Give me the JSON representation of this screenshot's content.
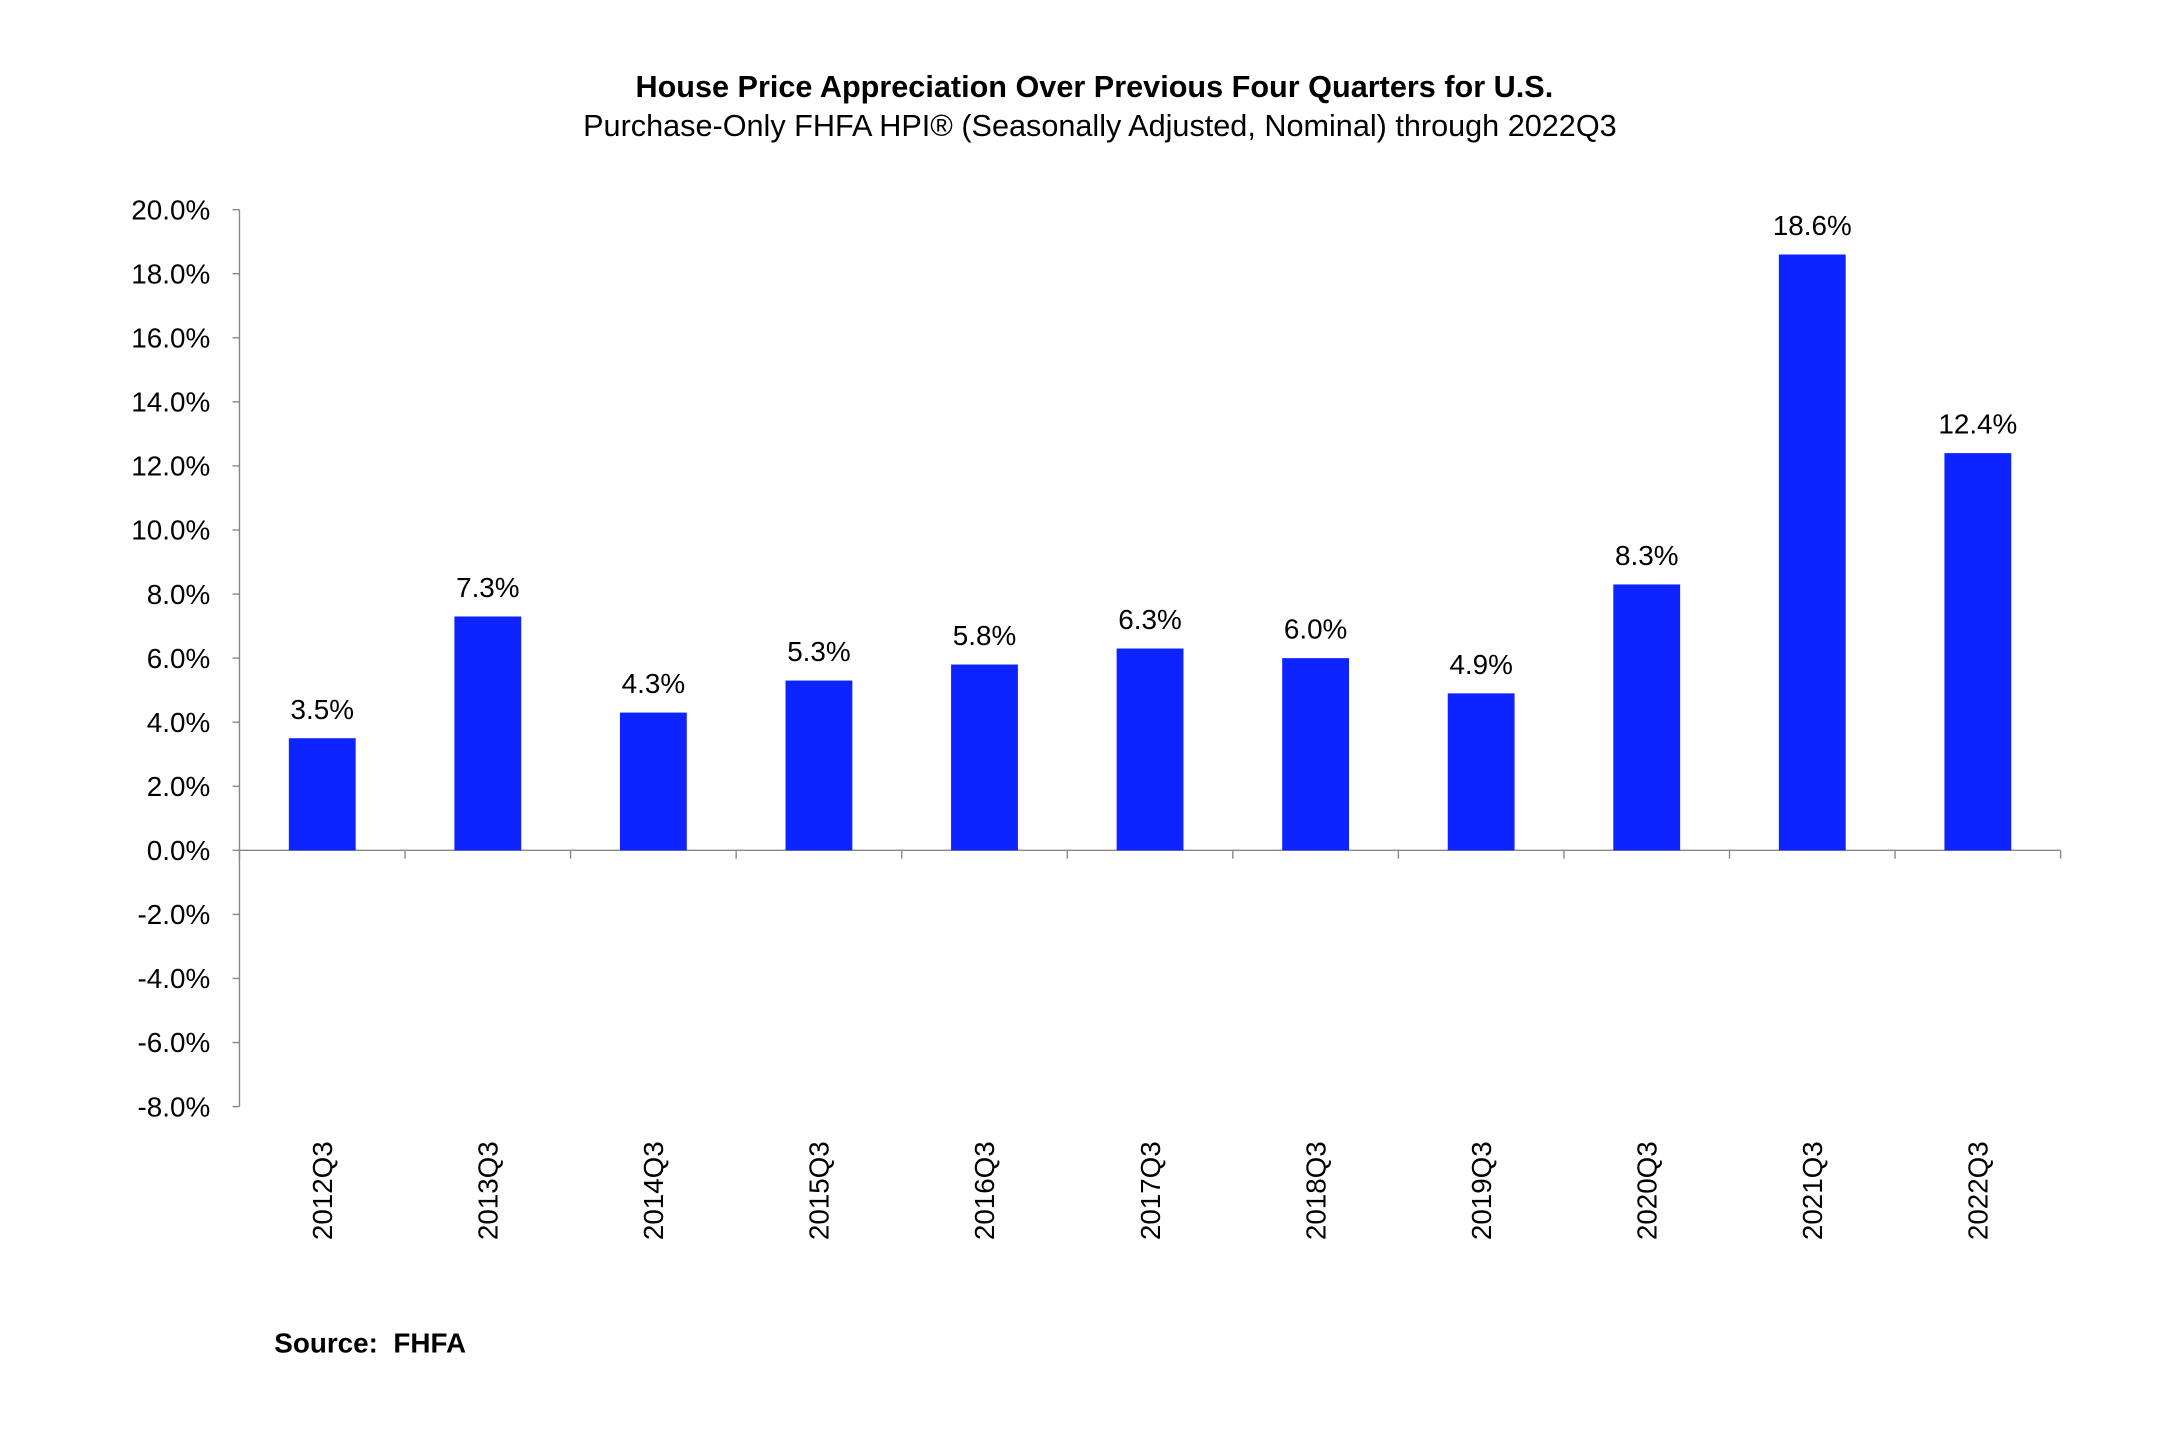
{
  "chart_data": {
    "type": "bar",
    "title": "House Price Appreciation Over Previous Four Quarters for U.S.",
    "subtitle": "Purchase-Only FHFA HPI® (Seasonally Adjusted, Nominal) through 2022Q3",
    "categories": [
      "2012Q3",
      "2013Q3",
      "2014Q3",
      "2015Q3",
      "2016Q3",
      "2017Q3",
      "2018Q3",
      "2019Q3",
      "2020Q3",
      "2021Q3",
      "2022Q3"
    ],
    "values": [
      3.5,
      7.3,
      4.3,
      5.3,
      5.8,
      6.3,
      6.0,
      4.9,
      8.3,
      18.6,
      12.4
    ],
    "data_labels": [
      "3.5%",
      "7.3%",
      "4.3%",
      "5.3%",
      "5.8%",
      "6.3%",
      "6.0%",
      "4.9%",
      "8.3%",
      "18.6%",
      "12.4%"
    ],
    "yticks": [
      20,
      18,
      16,
      14,
      12,
      10,
      8,
      6,
      4,
      2,
      0,
      -2,
      -4,
      -6,
      -8
    ],
    "ytick_labels": [
      "20.0%",
      "18.0%",
      "16.0%",
      "14.0%",
      "12.0%",
      "10.0%",
      "8.0%",
      "6.0%",
      "4.0%",
      "2.0%",
      "0.0%",
      "-2.0%",
      "-4.0%",
      "-6.0%",
      "-8.0%"
    ],
    "ylim": [
      -8,
      20
    ],
    "xlabel": "",
    "ylabel": "",
    "grid": false,
    "legend": "none",
    "bar_color": "#0D23FF",
    "source": "Source:  FHFA"
  }
}
